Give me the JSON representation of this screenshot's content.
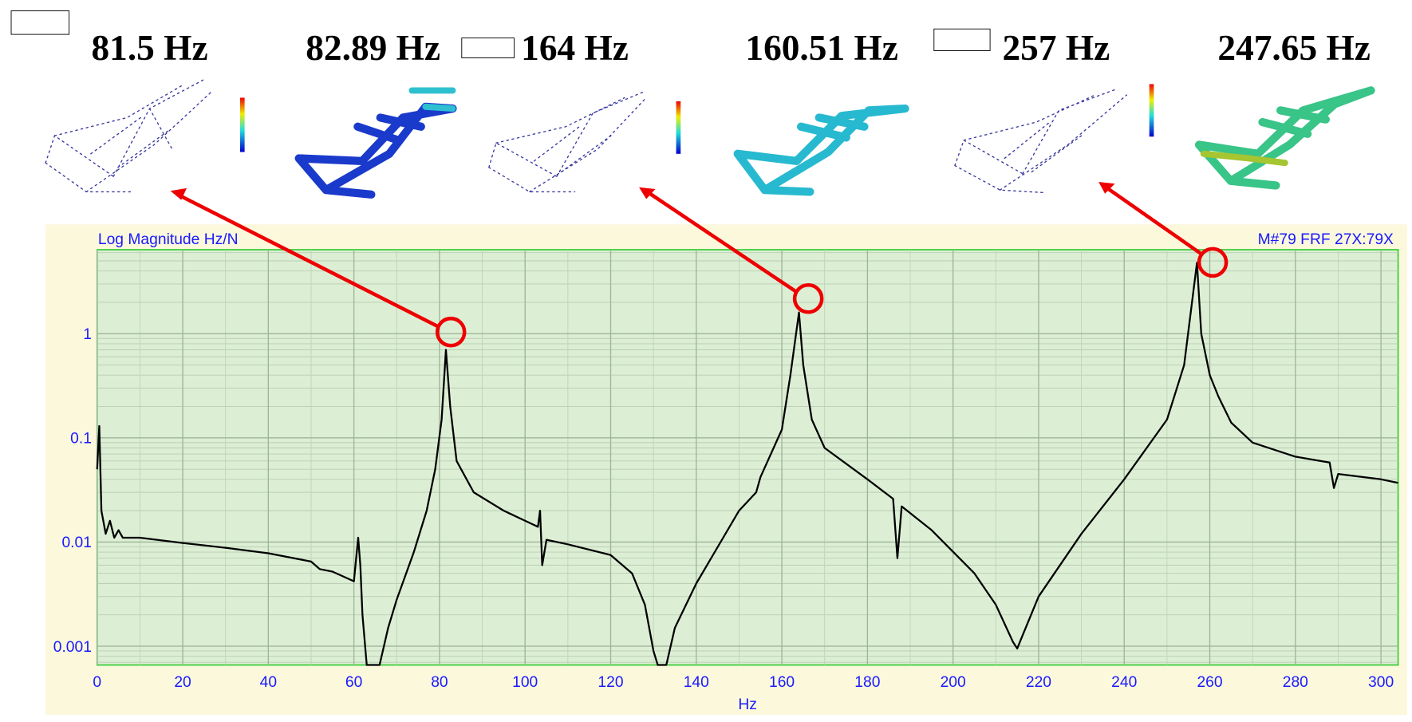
{
  "chart_data": {
    "type": "line",
    "title": "Log Magnitude Hz/N",
    "subtitle": "M#79 FRF 27X:79X",
    "x_label": "Hz",
    "annotations": [
      "81.5 Hz",
      "82.89 Hz",
      "164 Hz",
      "160.51 Hz",
      "257 Hz",
      "247.65 Hz"
    ],
    "log_y": true,
    "grid": true,
    "color": "#000000",
    "xlim": [
      0,
      304
    ],
    "ylim": [
      0.00066,
      6.4
    ],
    "xticks": [
      0,
      20,
      40,
      60,
      80,
      100,
      120,
      140,
      160,
      180,
      200,
      220,
      240,
      260,
      280,
      300
    ],
    "yticks": [
      0.001,
      0.01,
      0.1,
      1
    ],
    "x": [
      0,
      0.5,
      1,
      2,
      3,
      4,
      5,
      6,
      10,
      20,
      30,
      40,
      50,
      52,
      55,
      60,
      61,
      61.5,
      62,
      63,
      66,
      68,
      70,
      74,
      77,
      79,
      80.5,
      81.5,
      82.5,
      84,
      88,
      95,
      100,
      103,
      103.5,
      104,
      105,
      110,
      120,
      125,
      128,
      130,
      131,
      133,
      135,
      140,
      150,
      154,
      155,
      160,
      162,
      164,
      165,
      167,
      170,
      180,
      186,
      187,
      188,
      195,
      205,
      210,
      214,
      215,
      216,
      220,
      230,
      240,
      250,
      254,
      257,
      258,
      260,
      262,
      265,
      270,
      280,
      288,
      289,
      290,
      300,
      304
    ],
    "values": [
      0.05,
      0.13,
      0.02,
      0.012,
      0.016,
      0.011,
      0.013,
      0.011,
      0.011,
      0.0098,
      0.0088,
      0.0078,
      0.0065,
      0.0055,
      0.0052,
      0.0042,
      0.011,
      0.006,
      0.002,
      0.00066,
      0.00066,
      0.0015,
      0.0028,
      0.008,
      0.02,
      0.05,
      0.15,
      0.7,
      0.2,
      0.06,
      0.03,
      0.02,
      0.016,
      0.014,
      0.02,
      0.006,
      0.0105,
      0.0095,
      0.0075,
      0.005,
      0.0025,
      0.0009,
      0.00066,
      0.00066,
      0.0015,
      0.004,
      0.02,
      0.03,
      0.042,
      0.12,
      0.4,
      1.6,
      0.5,
      0.15,
      0.08,
      0.04,
      0.026,
      0.007,
      0.022,
      0.013,
      0.005,
      0.0025,
      0.0011,
      0.00095,
      0.0012,
      0.003,
      0.012,
      0.04,
      0.15,
      0.5,
      4.8,
      1.0,
      0.4,
      0.25,
      0.14,
      0.09,
      0.066,
      0.058,
      0.033,
      0.045,
      0.04,
      0.037
    ]
  }
}
